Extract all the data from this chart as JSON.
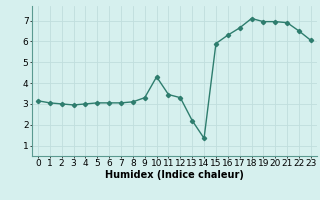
{
  "x": [
    0,
    1,
    2,
    3,
    4,
    5,
    6,
    7,
    8,
    9,
    10,
    11,
    12,
    13,
    14,
    15,
    16,
    17,
    18,
    19,
    20,
    21,
    22,
    23
  ],
  "y": [
    3.15,
    3.05,
    3.0,
    2.95,
    3.0,
    3.05,
    3.05,
    3.05,
    3.1,
    3.3,
    4.3,
    3.45,
    3.3,
    2.2,
    1.35,
    5.9,
    6.3,
    6.65,
    7.1,
    6.95,
    6.95,
    6.9,
    6.5,
    6.05
  ],
  "line_color": "#2e7d6e",
  "marker": "D",
  "markersize": 2.2,
  "linewidth": 1.0,
  "bg_color": "#d6f0ee",
  "grid_color": "#c0dedd",
  "xlabel": "Humidex (Indice chaleur)",
  "xlabel_fontsize": 7,
  "tick_fontsize": 6.5,
  "xlim": [
    -0.5,
    23.5
  ],
  "ylim": [
    0.5,
    7.7
  ],
  "yticks": [
    1,
    2,
    3,
    4,
    5,
    6,
    7
  ],
  "xticks": [
    0,
    1,
    2,
    3,
    4,
    5,
    6,
    7,
    8,
    9,
    10,
    11,
    12,
    13,
    14,
    15,
    16,
    17,
    18,
    19,
    20,
    21,
    22,
    23
  ]
}
